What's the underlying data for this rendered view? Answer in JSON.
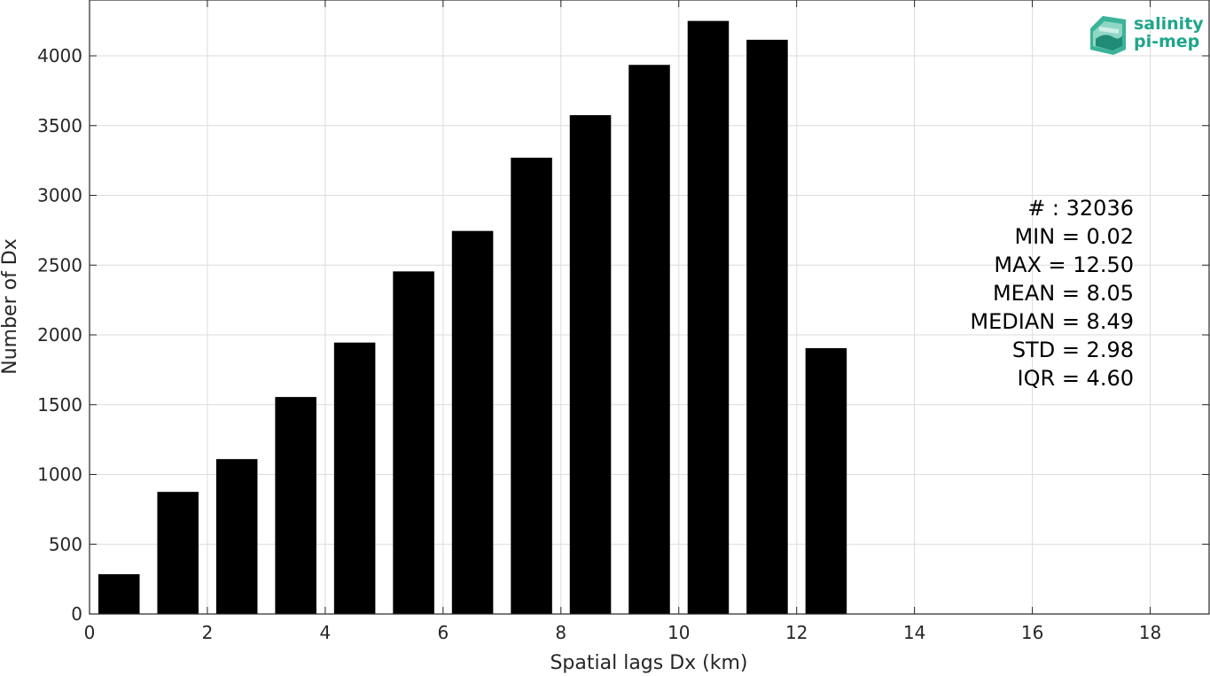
{
  "chart_data": {
    "type": "bar",
    "xlabel": "Spatial lags Dx (km)",
    "ylabel": "Number of Dx",
    "xlim": [
      0,
      19
    ],
    "ylim": [
      0,
      4400
    ],
    "xticks": [
      0,
      2,
      4,
      6,
      8,
      10,
      12,
      14,
      16,
      18
    ],
    "yticks": [
      0,
      500,
      1000,
      1500,
      2000,
      2500,
      3000,
      3500,
      4000
    ],
    "grid": true,
    "bar_color": "#000000",
    "bar_width": 0.7,
    "x": [
      0.5,
      1.5,
      2.5,
      3.5,
      4.5,
      5.5,
      6.5,
      7.5,
      8.5,
      9.5,
      10.5,
      11.5,
      12.5
    ],
    "values": [
      285,
      875,
      1110,
      1555,
      1945,
      2455,
      2745,
      3270,
      3575,
      3935,
      4250,
      4115,
      1905
    ]
  },
  "stats": {
    "lines": [
      "# : 32036",
      "MIN = 0.02",
      "MAX =  12.50",
      "MEAN = 8.05",
      "MEDIAN = 8.49",
      "STD = 2.98",
      "IQR = 4.60"
    ]
  },
  "logo": {
    "line1": "salinity",
    "line2": "pi-mep",
    "color": "#1fa58a"
  }
}
